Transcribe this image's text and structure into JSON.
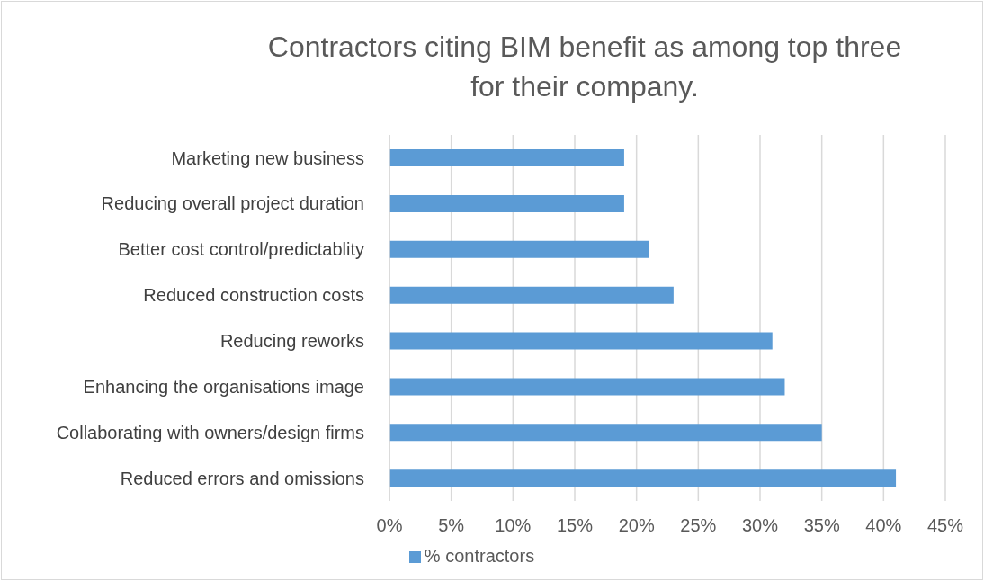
{
  "chart_data": {
    "type": "bar",
    "orientation": "horizontal",
    "title": "Contractors citing BIM benefit as among top three for their company.",
    "categories": [
      "Marketing new business",
      "Reducing overall project duration",
      "Better cost control/predictablity",
      "Reduced construction costs",
      "Reducing reworks",
      "Enhancing the organisations image",
      "Collaborating with owners/design firms",
      "Reduced errors and omissions"
    ],
    "series": [
      {
        "name": "% contractors",
        "color": "#5b9bd5",
        "values": [
          19,
          19,
          21,
          23,
          31,
          32,
          35,
          41
        ]
      }
    ],
    "xlim": [
      0,
      45
    ],
    "xticks": [
      {
        "value": 0,
        "label": "0%"
      },
      {
        "value": 5,
        "label": "5%"
      },
      {
        "value": 10,
        "label": "10%"
      },
      {
        "value": 15,
        "label": "15%"
      },
      {
        "value": 20,
        "label": "20%"
      },
      {
        "value": 25,
        "label": "25%"
      },
      {
        "value": 30,
        "label": "30%"
      },
      {
        "value": 35,
        "label": "35%"
      },
      {
        "value": 40,
        "label": "40%"
      },
      {
        "value": 45,
        "label": "45%"
      }
    ],
    "grid": "x",
    "legend": "bottom"
  }
}
